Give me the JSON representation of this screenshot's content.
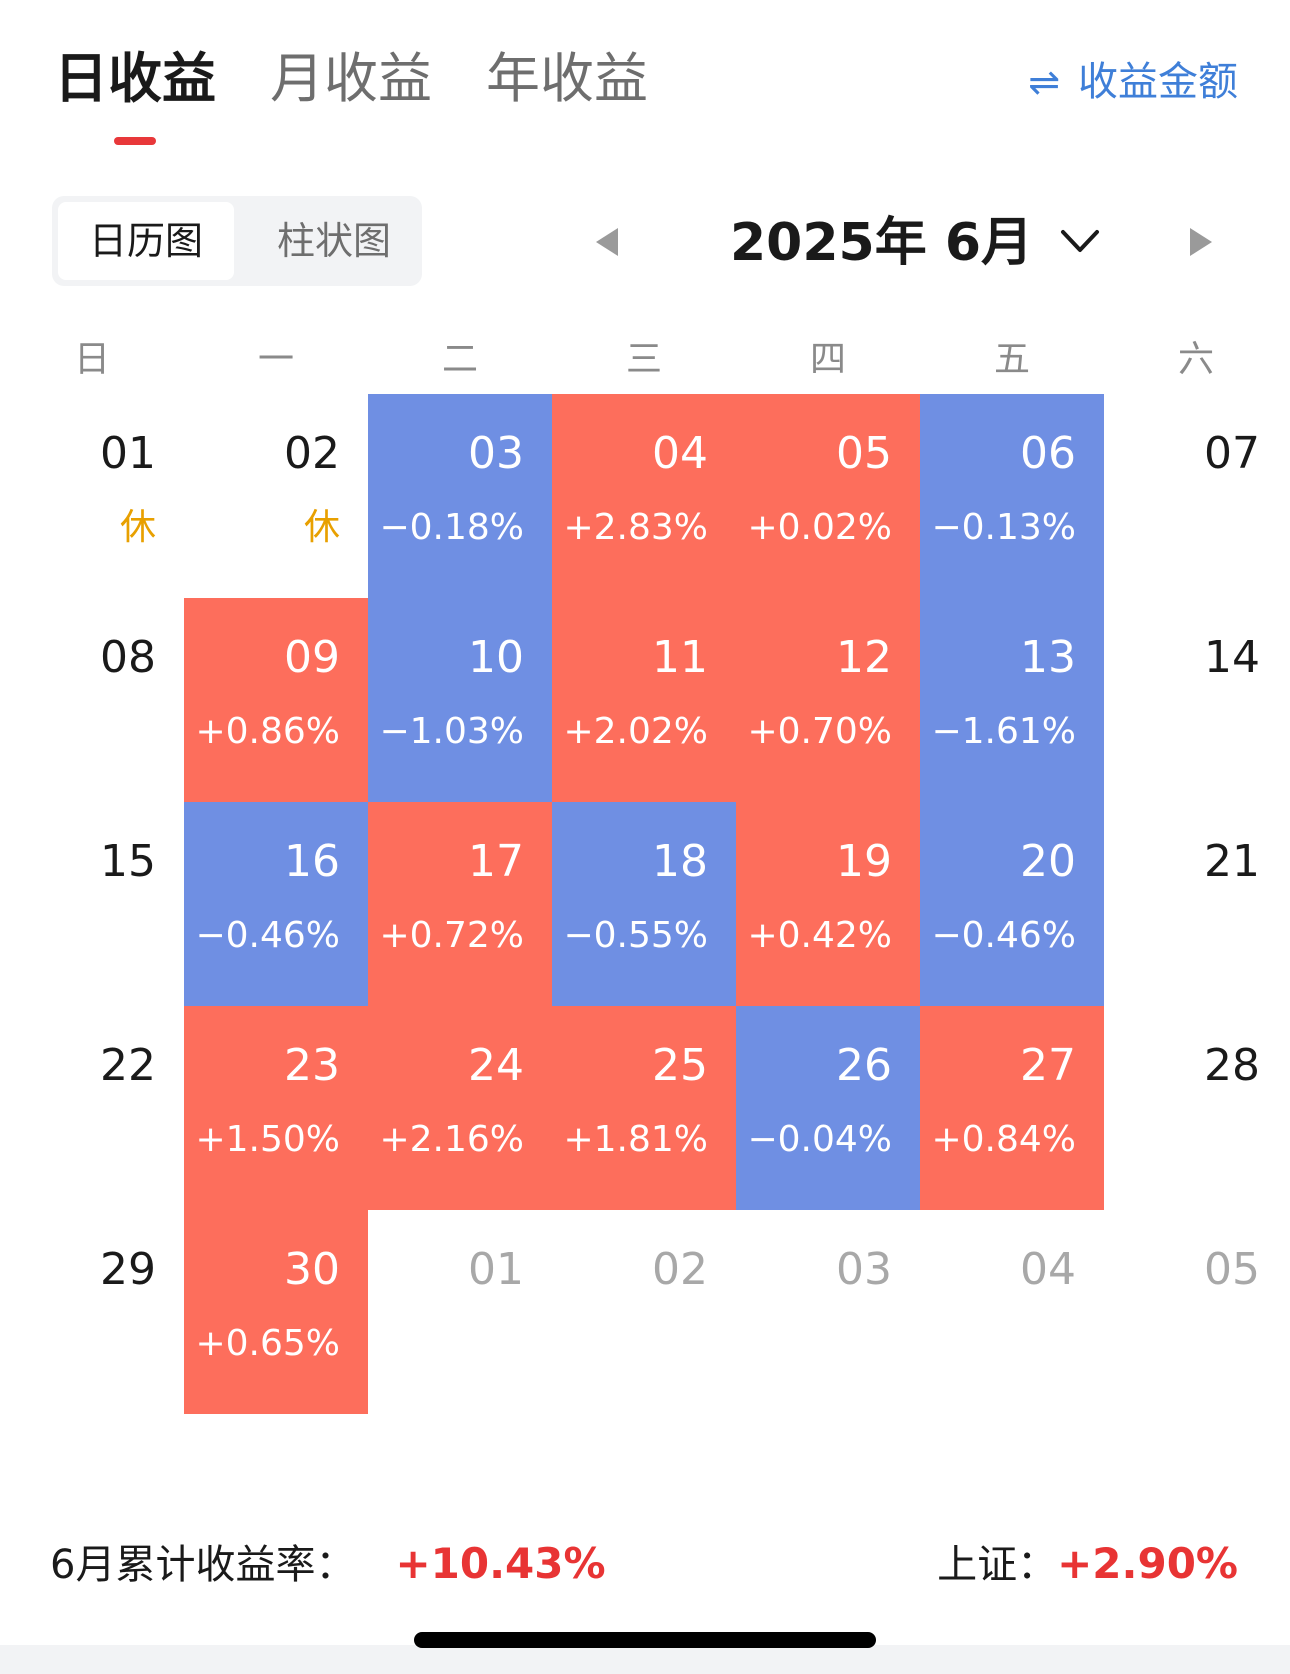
{
  "tabs": {
    "daily": "日收益",
    "monthly": "月收益",
    "yearly": "年收益"
  },
  "switch_link": {
    "icon": "⇌",
    "label": "收益金额"
  },
  "view_toggle": {
    "calendar": "日历图",
    "bar": "柱状图"
  },
  "month_picker": {
    "label": "2025年 6月"
  },
  "weekdays": [
    "日",
    "一",
    "二",
    "三",
    "四",
    "五",
    "六"
  ],
  "colors": {
    "up": "#fd6e5c",
    "down": "#6f8fe3",
    "rest": "#e8a000",
    "accent_red": "#e83434",
    "link_blue": "#3f7fd8"
  },
  "calendar": [
    [
      {
        "day": "01",
        "rest": "休"
      },
      {
        "day": "02",
        "rest": "休"
      },
      {
        "day": "03",
        "value": "−0.18%",
        "dir": "down"
      },
      {
        "day": "04",
        "value": "+2.83%",
        "dir": "up"
      },
      {
        "day": "05",
        "value": "+0.02%",
        "dir": "up"
      },
      {
        "day": "06",
        "value": "−0.13%",
        "dir": "down"
      },
      {
        "day": "07"
      }
    ],
    [
      {
        "day": "08"
      },
      {
        "day": "09",
        "value": "+0.86%",
        "dir": "up"
      },
      {
        "day": "10",
        "value": "−1.03%",
        "dir": "down"
      },
      {
        "day": "11",
        "value": "+2.02%",
        "dir": "up"
      },
      {
        "day": "12",
        "value": "+0.70%",
        "dir": "up"
      },
      {
        "day": "13",
        "value": "−1.61%",
        "dir": "down"
      },
      {
        "day": "14"
      }
    ],
    [
      {
        "day": "15"
      },
      {
        "day": "16",
        "value": "−0.46%",
        "dir": "down"
      },
      {
        "day": "17",
        "value": "+0.72%",
        "dir": "up"
      },
      {
        "day": "18",
        "value": "−0.55%",
        "dir": "down"
      },
      {
        "day": "19",
        "value": "+0.42%",
        "dir": "up"
      },
      {
        "day": "20",
        "value": "−0.46%",
        "dir": "down"
      },
      {
        "day": "21"
      }
    ],
    [
      {
        "day": "22"
      },
      {
        "day": "23",
        "value": "+1.50%",
        "dir": "up"
      },
      {
        "day": "24",
        "value": "+2.16%",
        "dir": "up"
      },
      {
        "day": "25",
        "value": "+1.81%",
        "dir": "up"
      },
      {
        "day": "26",
        "value": "−0.04%",
        "dir": "down"
      },
      {
        "day": "27",
        "value": "+0.84%",
        "dir": "up"
      },
      {
        "day": "28"
      }
    ],
    [
      {
        "day": "29"
      },
      {
        "day": "30",
        "value": "+0.65%",
        "dir": "up"
      },
      {
        "day": "01",
        "other": true
      },
      {
        "day": "02",
        "other": true
      },
      {
        "day": "03",
        "other": true
      },
      {
        "day": "04",
        "other": true
      },
      {
        "day": "05",
        "other": true
      }
    ]
  ],
  "summary": {
    "label": "6月累计收益率：",
    "value": "+10.43%",
    "index_label": "上证：",
    "index_value": "+2.90%"
  }
}
